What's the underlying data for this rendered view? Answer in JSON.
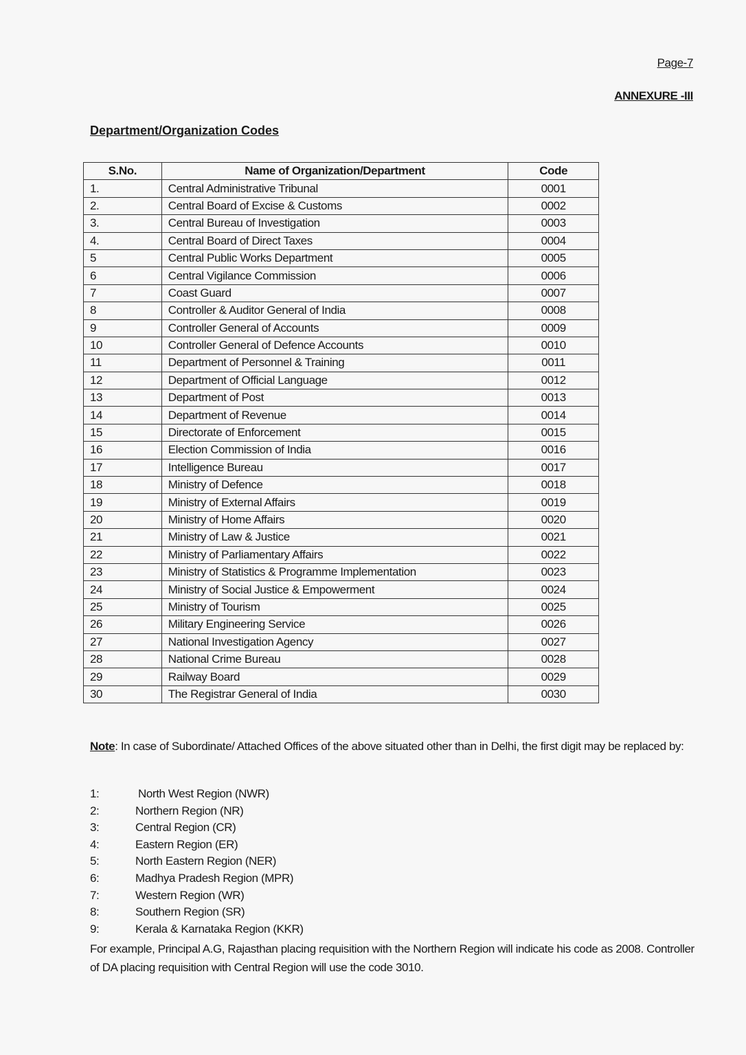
{
  "page_label": "Page-7",
  "annexure": "ANNEXURE -III",
  "title": "Department/Organization Codes",
  "table": {
    "headers": [
      "S.No.",
      "Name of Organization/Department",
      "Code"
    ],
    "rows": [
      [
        "1.",
        "Central Administrative Tribunal",
        "0001"
      ],
      [
        "2.",
        "Central Board of Excise & Customs",
        "0002"
      ],
      [
        "3.",
        "Central Bureau of Investigation",
        "0003"
      ],
      [
        "4.",
        "Central Board of Direct Taxes",
        "0004"
      ],
      [
        "5",
        "Central Public Works Department",
        "0005"
      ],
      [
        "6",
        "Central Vigilance Commission",
        "0006"
      ],
      [
        "7",
        "Coast Guard",
        "0007"
      ],
      [
        "8",
        "Controller & Auditor General of India",
        "0008"
      ],
      [
        "9",
        "Controller General of Accounts",
        "0009"
      ],
      [
        "10",
        "Controller General of Defence Accounts",
        "0010"
      ],
      [
        "11",
        "Department of Personnel & Training",
        "0011"
      ],
      [
        "12",
        "Department of Official Language",
        "0012"
      ],
      [
        "13",
        "Department of Post",
        "0013"
      ],
      [
        "14",
        "Department of Revenue",
        "0014"
      ],
      [
        "15",
        "Directorate of Enforcement",
        "0015"
      ],
      [
        "16",
        "Election Commission of India",
        "0016"
      ],
      [
        "17",
        "Intelligence Bureau",
        "0017"
      ],
      [
        "18",
        "Ministry of Defence",
        "0018"
      ],
      [
        "19",
        "Ministry of External Affairs",
        "0019"
      ],
      [
        "20",
        "Ministry of Home Affairs",
        "0020"
      ],
      [
        "21",
        "Ministry of Law & Justice",
        "0021"
      ],
      [
        "22",
        "Ministry of Parliamentary Affairs",
        "0022"
      ],
      [
        "23",
        "Ministry of Statistics & Programme Implementation",
        "0023"
      ],
      [
        "24",
        "Ministry of Social Justice & Empowerment",
        "0024"
      ],
      [
        "25",
        "Ministry of Tourism",
        "0025"
      ],
      [
        "26",
        "Military Engineering Service",
        "0026"
      ],
      [
        "27",
        "National Investigation Agency",
        "0027"
      ],
      [
        "28",
        "National Crime Bureau",
        "0028"
      ],
      [
        "29",
        "Railway Board",
        "0029"
      ],
      [
        "30",
        "The Registrar General of India",
        "0030"
      ]
    ]
  },
  "note": {
    "label": "Note",
    "text": ":  In case of Subordinate/ Attached Offices of the above situated other than in Delhi, the first digit may be replaced by:"
  },
  "regions": [
    [
      "1:",
      "North West  Region (NWR)"
    ],
    [
      "2:",
      "Northern Region (NR)"
    ],
    [
      "3:",
      "Central  Region (CR)"
    ],
    [
      "4:",
      "Eastern Region (ER)"
    ],
    [
      "5:",
      "North Eastern Region (NER)"
    ],
    [
      "6:",
      "Madhya Pradesh Region (MPR)"
    ],
    [
      "7:",
      "Western Region (WR)"
    ],
    [
      "8:",
      "Southern Region (SR)"
    ],
    [
      "9:",
      "Kerala & Karnataka Region (KKR)"
    ]
  ],
  "example": "For example,  Principal  A.G, Rajasthan placing requisition with the Northern Region will indicate his code as 2008. Controller of DA placing requisition with Central Region will use the code 3010."
}
